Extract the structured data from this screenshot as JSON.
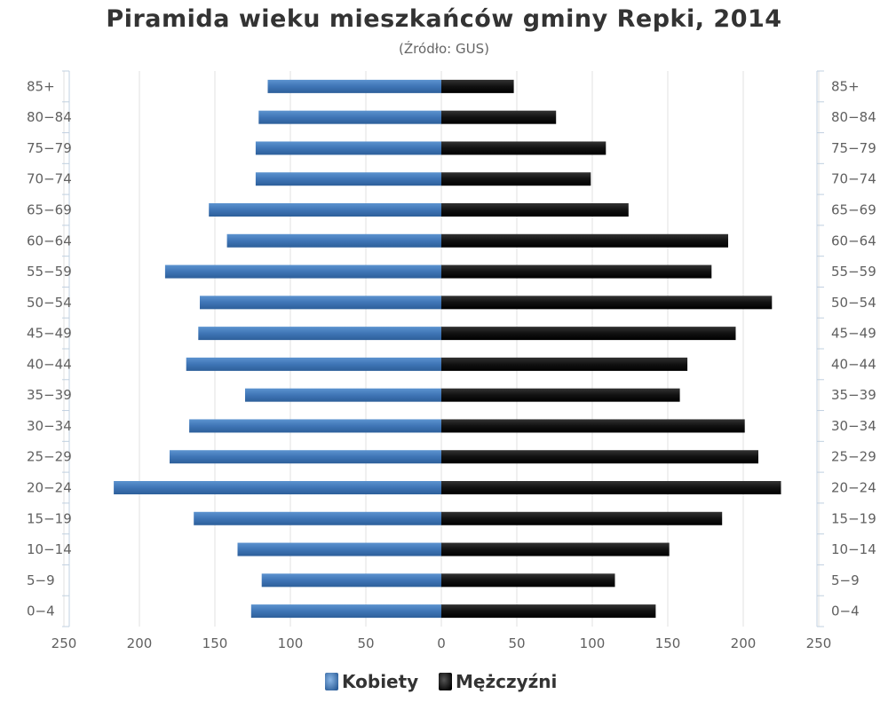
{
  "chart_data": {
    "type": "bar",
    "orientation": "horizontal",
    "title": "Piramida wieku mieszkańców gminy Repki, 2014",
    "subtitle": "(Źródło: GUS)",
    "categories": [
      "85+",
      "80-84",
      "75-79",
      "70-74",
      "65-69",
      "60-64",
      "55-59",
      "50-54",
      "45-49",
      "40-44",
      "35-39",
      "30-34",
      "25-29",
      "20-24",
      "15-19",
      "10-14",
      "5-9",
      "0-4"
    ],
    "series": [
      {
        "name": "Kobiety",
        "color": "#4a7fbd",
        "side": "left",
        "values": [
          115,
          121,
          123,
          123,
          154,
          142,
          183,
          160,
          161,
          169,
          130,
          167,
          180,
          217,
          164,
          135,
          119,
          126
        ]
      },
      {
        "name": "Mężczyźni",
        "color": "#222222",
        "side": "right",
        "values": [
          48,
          76,
          109,
          99,
          124,
          190,
          179,
          219,
          195,
          163,
          158,
          201,
          210,
          225,
          186,
          151,
          115,
          142
        ]
      }
    ],
    "xlim": [
      -250,
      250
    ],
    "xticks": [
      "250",
      "200",
      "150",
      "100",
      "50",
      "0",
      "50",
      "100",
      "150",
      "200",
      "250"
    ],
    "grid": true,
    "legend_position": "bottom-center"
  }
}
